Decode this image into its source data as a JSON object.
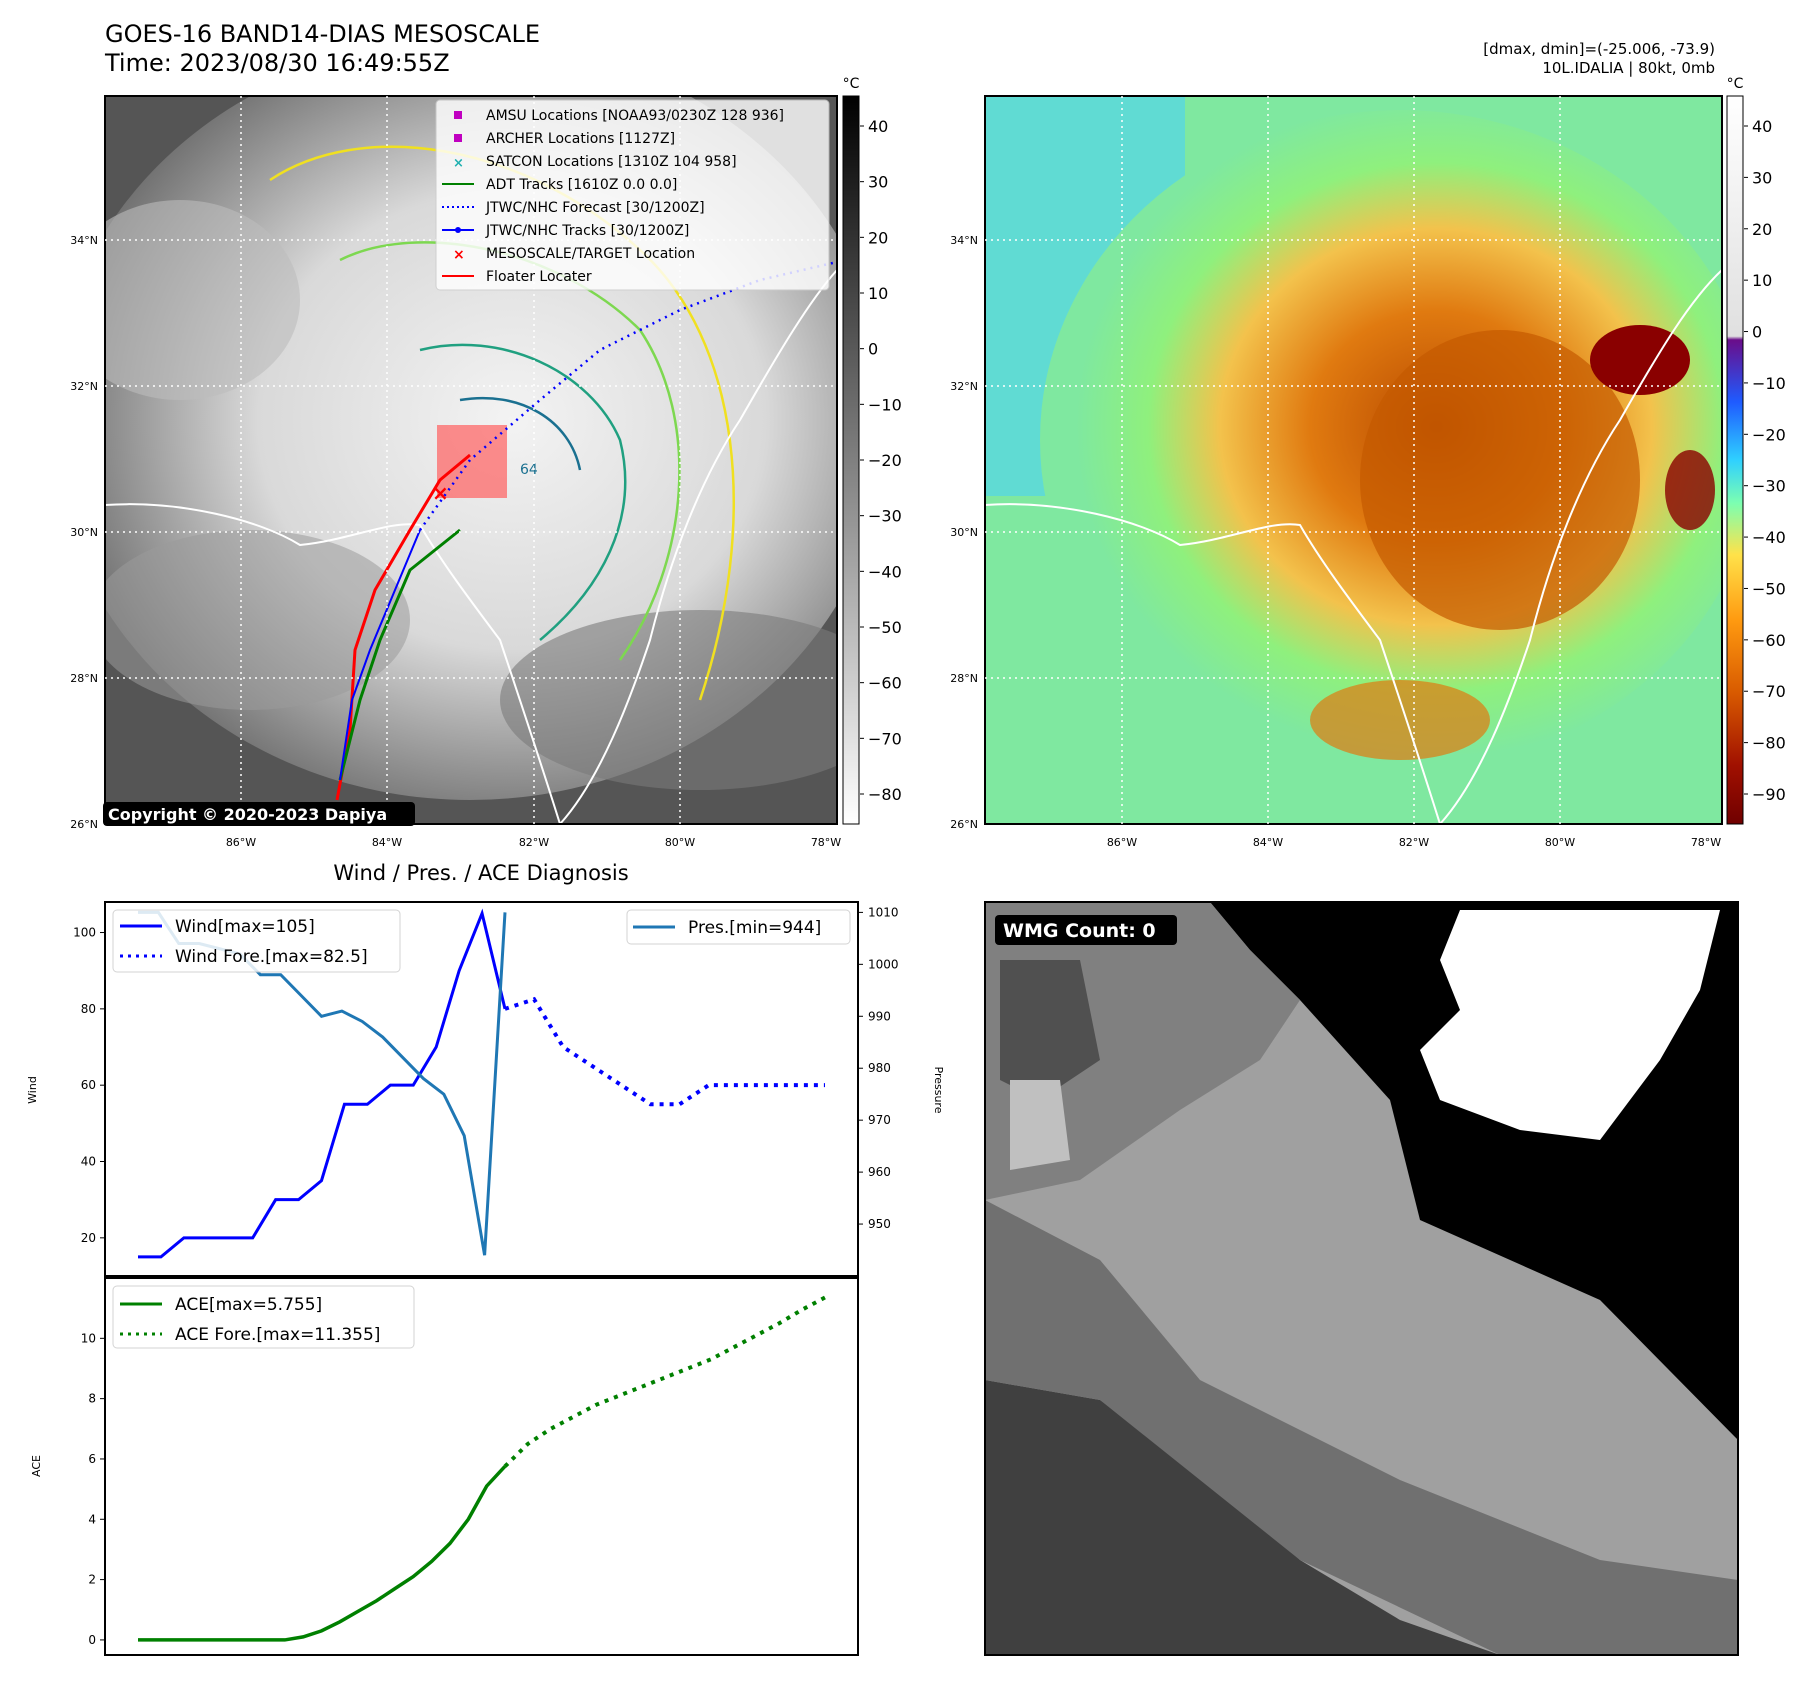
{
  "header": {
    "title": "GOES-16 BAND14-DIAS MESOSCALE",
    "time": "Time: 2023/08/30 16:49:55Z",
    "stats": "[dmax, dmin]=(-25.006, -73.9)",
    "storm": "10L.IDALIA | 80kt, 0mb"
  },
  "maps": {
    "lat_labels": [
      "34°N",
      "32°N",
      "30°N",
      "28°N",
      "26°N"
    ],
    "lon_labels": [
      "86°W",
      "84°W",
      "82°W",
      "80°W",
      "78°W"
    ],
    "copyright": "Copyright © 2020-2023 Dapiya",
    "left_colorbar": {
      "unit": "°C",
      "ticks": [
        "40",
        "30",
        "20",
        "10",
        "0",
        "−10",
        "−20",
        "−30",
        "−40",
        "−50",
        "−60",
        "−70",
        "−80"
      ]
    },
    "right_colorbar": {
      "unit": "°C",
      "ticks": [
        "40",
        "30",
        "20",
        "10",
        "0",
        "−10",
        "−20",
        "−30",
        "−40",
        "−50",
        "−60",
        "−70",
        "−80",
        "−90"
      ]
    },
    "legend": [
      {
        "label": "AMSU Locations [NOAA93/0230Z 128 936]",
        "color": "#c000c0",
        "marker": "square"
      },
      {
        "label": "ARCHER Locations [1127Z]",
        "color": "#c000c0",
        "marker": "square"
      },
      {
        "label": "SATCON Locations [1310Z 104 958]",
        "color": "#20b0b0",
        "marker": "x"
      },
      {
        "label": "ADT Tracks [1610Z 0.0 0.0]",
        "color": "#008000",
        "marker": "line"
      },
      {
        "label": "JTWC/NHC Forecast [30/1200Z]",
        "color": "#0000ff",
        "marker": "dotted"
      },
      {
        "label": "JTWC/NHC Tracks [30/1200Z]",
        "color": "#0000ff",
        "marker": "line-dot"
      },
      {
        "label": "MESOSCALE/TARGET Location",
        "color": "#ff0000",
        "marker": "x"
      },
      {
        "label": "Floater Locater",
        "color": "#ff0000",
        "marker": "line"
      }
    ],
    "contour_label": "64",
    "wmg_label": "WMG Count: 0"
  },
  "chart_data": [
    {
      "type": "line",
      "title": "Wind / Pres. / ACE Diagnosis",
      "ylabel": "Wind",
      "ylabel_right": "Pressure",
      "ylim": [
        10,
        108
      ],
      "ylim_right": [
        940,
        1012
      ],
      "yticks": [
        20,
        40,
        60,
        80,
        100
      ],
      "yticks_right": [
        950,
        960,
        970,
        980,
        990,
        1000,
        1010
      ],
      "series": [
        {
          "name": "Wind[max=105]",
          "color": "#0000ff",
          "style": "solid",
          "values": [
            15,
            15,
            20,
            20,
            20,
            20,
            30,
            30,
            35,
            55,
            55,
            60,
            60,
            70,
            90,
            105,
            80
          ]
        },
        {
          "name": "Wind Fore.[max=82.5]",
          "color": "#0000ff",
          "style": "dotted",
          "values": [
            80,
            82.5,
            70,
            65,
            60,
            55,
            55,
            60,
            60,
            60,
            60,
            60
          ]
        },
        {
          "name": "Pres.[min=944]",
          "color": "#1f77b4",
          "style": "solid",
          "values": [
            1010,
            1010,
            1004,
            1004,
            1003,
            1002,
            998,
            998,
            994,
            990,
            991,
            989,
            986,
            982,
            978,
            975,
            967,
            944,
            1010
          ]
        }
      ],
      "legend_left": [
        "Wind[max=105]",
        "Wind Fore.[max=82.5]"
      ],
      "legend_right": [
        "Pres.[min=944]"
      ]
    },
    {
      "type": "line",
      "ylabel": "ACE",
      "ylim": [
        -0.5,
        12
      ],
      "yticks": [
        0,
        2,
        4,
        6,
        8,
        10
      ],
      "series": [
        {
          "name": "ACE[max=5.755]",
          "color": "#008000",
          "style": "solid",
          "values": [
            0,
            0,
            0,
            0,
            0,
            0,
            0,
            0,
            0,
            0.1,
            0.3,
            0.6,
            0.95,
            1.3,
            1.7,
            2.1,
            2.6,
            3.2,
            4.0,
            5.1,
            5.755
          ]
        },
        {
          "name": "ACE Fore.[max=11.355]",
          "color": "#008000",
          "style": "dotted",
          "values": [
            5.755,
            6.5,
            7.0,
            7.4,
            7.8,
            8.1,
            8.4,
            8.7,
            9.0,
            9.3,
            9.7,
            10.1,
            10.5,
            10.95,
            11.355
          ]
        }
      ]
    }
  ]
}
